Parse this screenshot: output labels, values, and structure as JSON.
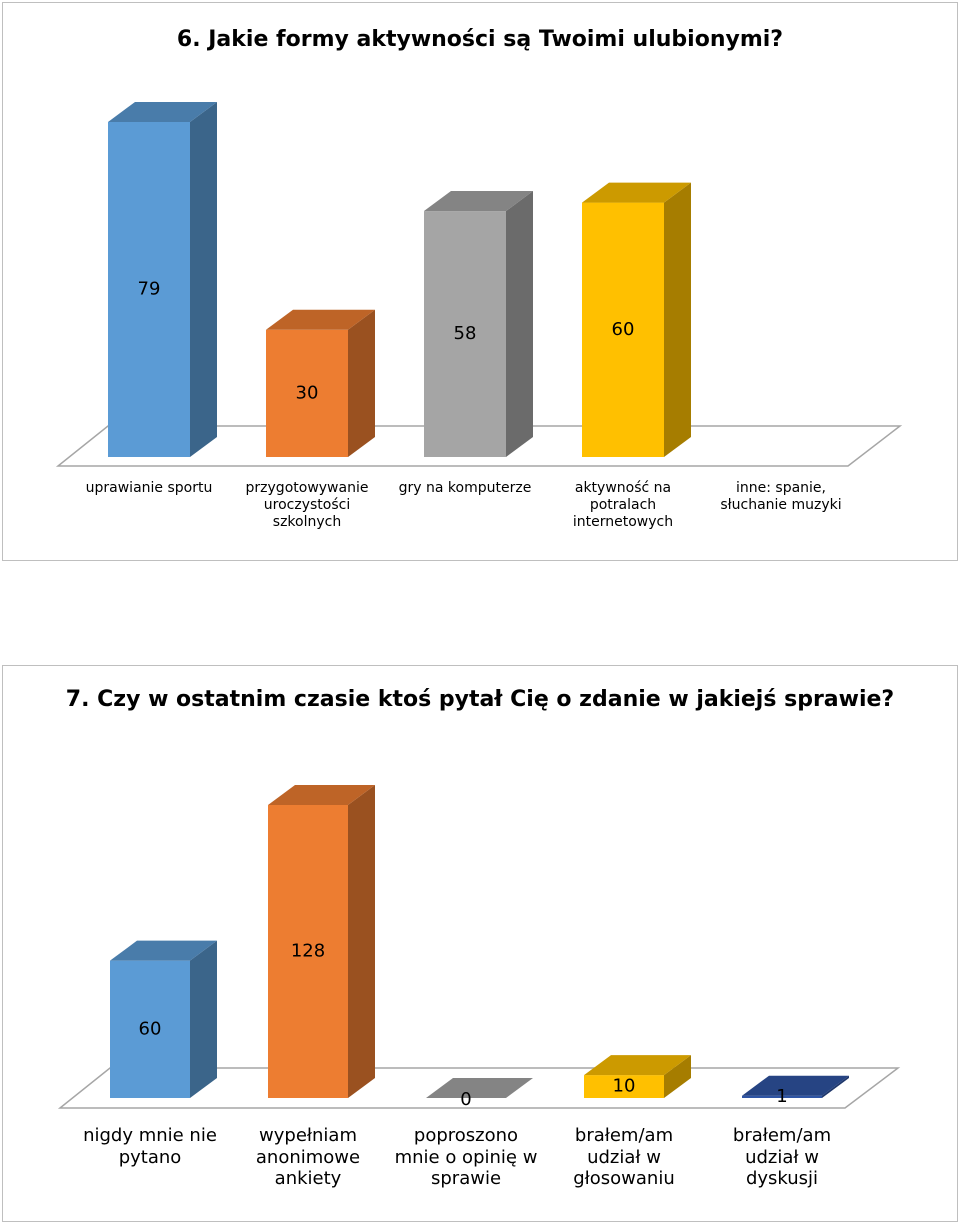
{
  "chart_data": [
    {
      "type": "bar3d",
      "title": "6. Jakie formy aktywności są Twoimi ulubionymi?",
      "categories": [
        "uprawianie sportu",
        "przygotowywanie uroczystości szkolnych",
        "gry na komputerze",
        "aktywność na potralach internetowych",
        "inne: spanie, słuchanie muzyki"
      ],
      "values": [
        79,
        30,
        58,
        60,
        null
      ],
      "colors": [
        "#5b9bd5",
        "#ed7d31",
        "#a5a5a5",
        "#ffc000",
        "#264478"
      ]
    },
    {
      "type": "bar3d",
      "title": "7. Czy w ostatnim czasie ktoś pytał Cię o zdanie w jakiejś sprawie?",
      "categories": [
        "nigdy mnie nie pytano",
        "wypełniam anonimowe ankiety",
        "poproszono mnie o opinię w sprawie",
        "brałem/am udział w głosowaniu",
        "brałem/am udział w dyskusji"
      ],
      "values": [
        60,
        128,
        0,
        10,
        1
      ],
      "colors": [
        "#5b9bd5",
        "#ed7d31",
        "#a5a5a5",
        "#ffc000",
        "#2f55a4"
      ]
    }
  ]
}
